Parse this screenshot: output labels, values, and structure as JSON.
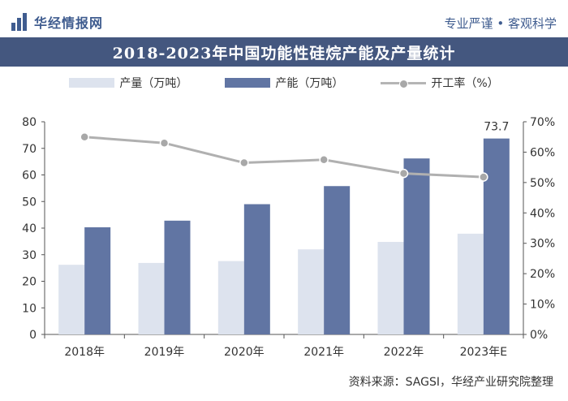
{
  "header": {
    "brand": "华经情报网",
    "tagline": "专业严谨 • 客观科学"
  },
  "chart_data": {
    "type": "bar",
    "title": "2018-2023年中国功能性硅烷产能及产量统计",
    "categories": [
      "2018年",
      "2019年",
      "2020年",
      "2021年",
      "2022年",
      "2023年E"
    ],
    "series": [
      {
        "name": "产量（万吨）",
        "type": "bar",
        "axis": "left",
        "color": "#dde3ee",
        "values": [
          26.2,
          26.9,
          27.6,
          32.0,
          34.8,
          37.9
        ]
      },
      {
        "name": "产能（万吨）",
        "type": "bar",
        "axis": "left",
        "color": "#6175a3",
        "values": [
          40.3,
          42.8,
          49.0,
          55.8,
          66.2,
          73.7
        ]
      },
      {
        "name": "开工率（%）",
        "type": "line",
        "axis": "right",
        "color": "#b0b0b0",
        "values": [
          65,
          63,
          56.5,
          57.5,
          53,
          51.8
        ]
      }
    ],
    "data_labels": [
      {
        "series": "产能（万吨）",
        "index": 5,
        "text": "73.7"
      }
    ],
    "y_left": {
      "min": 0,
      "max": 80,
      "ticks": [
        "0",
        "10",
        "20",
        "30",
        "40",
        "50",
        "60",
        "70",
        "80"
      ]
    },
    "y_right": {
      "min": 0,
      "max": 70,
      "ticks": [
        "0%",
        "10%",
        "20%",
        "30%",
        "40%",
        "50%",
        "60%",
        "70%"
      ]
    },
    "legend_position": "top",
    "grid": false
  },
  "footer": {
    "source": "资料来源：SAGSI，华经产业研究院整理"
  }
}
